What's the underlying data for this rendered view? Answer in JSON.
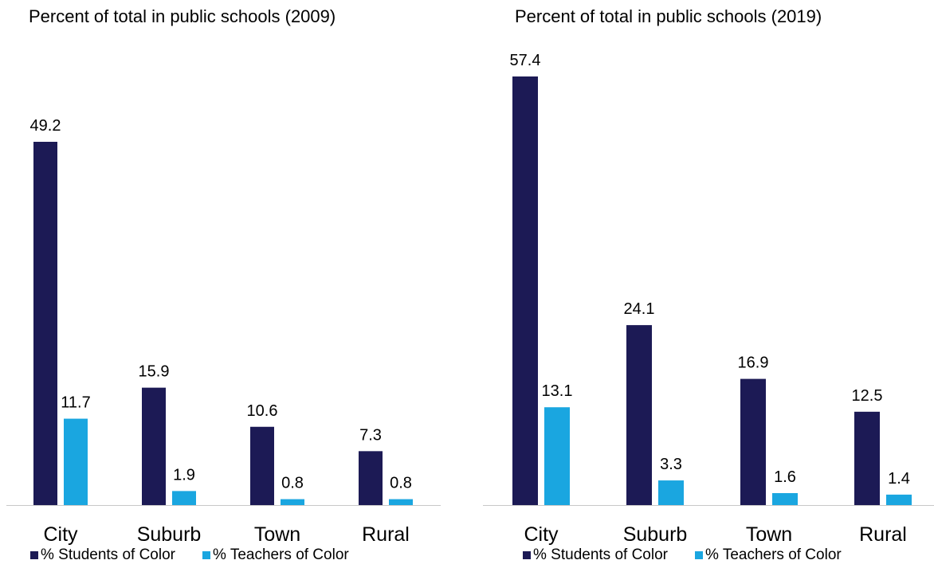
{
  "colors": {
    "students": "#1c1a55",
    "teachers": "#1aa6e0",
    "axis": "#c8c8c8"
  },
  "chart_data": [
    {
      "type": "bar",
      "title": "Percent of total in public schools (2009)",
      "categories": [
        "City",
        "Suburb",
        "Town",
        "Rural"
      ],
      "series": [
        {
          "name": "% Students of Color",
          "values": [
            49.2,
            15.9,
            10.6,
            7.3
          ]
        },
        {
          "name": "% Teachers of Color",
          "values": [
            11.7,
            1.9,
            0.8,
            0.8
          ]
        }
      ],
      "ylim": [
        0,
        49.2
      ],
      "grid": false,
      "legend": "bottom"
    },
    {
      "type": "bar",
      "title": "Percent of total in public schools (2019)",
      "categories": [
        "City",
        "Suburb",
        "Town",
        "Rural"
      ],
      "series": [
        {
          "name": "% Students of Color",
          "values": [
            57.4,
            24.1,
            16.9,
            12.5
          ]
        },
        {
          "name": "% Teachers of Color",
          "values": [
            13.1,
            3.3,
            1.6,
            1.4
          ]
        }
      ],
      "ylim": [
        0,
        57.4
      ],
      "grid": false,
      "legend": "bottom"
    }
  ]
}
